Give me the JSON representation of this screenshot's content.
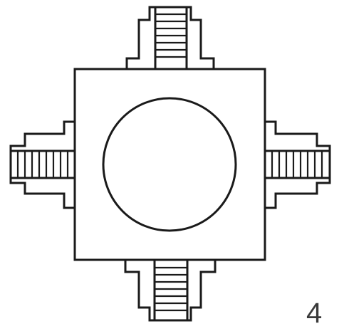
{
  "figure": {
    "number": "4",
    "elements": [
      "square-body",
      "central-circle",
      "top-coupling",
      "bottom-coupling",
      "left-coupling",
      "right-coupling"
    ],
    "line_color": "#1a1a1a",
    "label_color": "#3a3a3a",
    "background_color": "#ffffff"
  }
}
